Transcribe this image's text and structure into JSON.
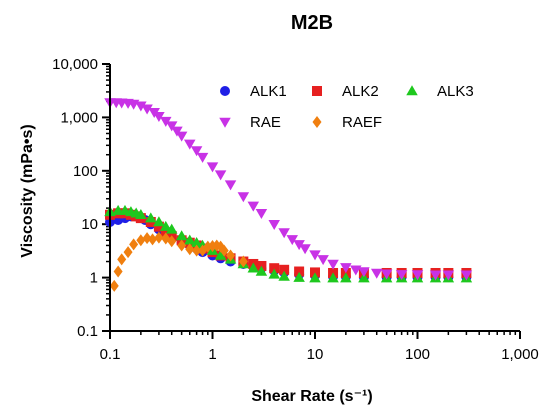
{
  "chart_data": {
    "type": "scatter",
    "title": "M2B",
    "xlabel": "Shear Rate (s⁻¹)",
    "ylabel": "Viscosity (mPa•s)",
    "x_scale": "log",
    "y_scale": "log",
    "xlim": [
      0.1,
      1000
    ],
    "ylim": [
      0.1,
      10000
    ],
    "x_ticks": [
      "0.1",
      "1",
      "10",
      "100",
      "1,000"
    ],
    "y_ticks": [
      "0.1",
      "1",
      "10",
      "100",
      "1,000",
      "10,000"
    ],
    "grid": false,
    "legend_position": "top-right",
    "series": [
      {
        "name": "ALK1",
        "marker": "circle",
        "color": "#1f1fe6",
        "points": [
          [
            0.1,
            11
          ],
          [
            0.12,
            12
          ],
          [
            0.14,
            13
          ],
          [
            0.16,
            14
          ],
          [
            0.18,
            14
          ],
          [
            0.2,
            13
          ],
          [
            0.22,
            12
          ],
          [
            0.25,
            10
          ],
          [
            0.3,
            8
          ],
          [
            0.35,
            6.5
          ],
          [
            0.4,
            5.5
          ],
          [
            0.5,
            4.5
          ],
          [
            0.6,
            4
          ],
          [
            0.7,
            3.5
          ],
          [
            0.8,
            3
          ],
          [
            1,
            2.6
          ],
          [
            1.2,
            2.3
          ],
          [
            1.5,
            2
          ],
          [
            2,
            1.8
          ],
          [
            2.5,
            1.6
          ],
          [
            3,
            1.5
          ],
          [
            4,
            1.35
          ],
          [
            5,
            1.25
          ],
          [
            7,
            1.15
          ],
          [
            10,
            1.1
          ],
          [
            15,
            1.05
          ],
          [
            20,
            1.05
          ],
          [
            30,
            1.02
          ],
          [
            50,
            1.02
          ],
          [
            70,
            1.02
          ],
          [
            100,
            1.02
          ],
          [
            150,
            1.02
          ],
          [
            200,
            1.02
          ],
          [
            300,
            1.02
          ]
        ]
      },
      {
        "name": "ALK2",
        "marker": "square",
        "color": "#e62020",
        "points": [
          [
            0.1,
            15
          ],
          [
            0.12,
            16
          ],
          [
            0.14,
            16
          ],
          [
            0.16,
            15
          ],
          [
            0.18,
            14
          ],
          [
            0.2,
            13
          ],
          [
            0.25,
            11
          ],
          [
            0.3,
            9
          ],
          [
            0.35,
            7
          ],
          [
            0.4,
            6
          ],
          [
            0.5,
            5
          ],
          [
            0.6,
            4.5
          ],
          [
            0.7,
            4
          ],
          [
            0.8,
            3.5
          ],
          [
            1,
            3
          ],
          [
            1.2,
            2.6
          ],
          [
            1.5,
            2.3
          ],
          [
            2,
            2
          ],
          [
            2.5,
            1.8
          ],
          [
            3,
            1.65
          ],
          [
            4,
            1.5
          ],
          [
            5,
            1.4
          ],
          [
            7,
            1.3
          ],
          [
            10,
            1.25
          ],
          [
            15,
            1.22
          ],
          [
            20,
            1.22
          ],
          [
            30,
            1.22
          ],
          [
            50,
            1.22
          ],
          [
            70,
            1.22
          ],
          [
            100,
            1.22
          ],
          [
            150,
            1.22
          ],
          [
            200,
            1.22
          ],
          [
            300,
            1.22
          ]
        ]
      },
      {
        "name": "ALK3",
        "marker": "triangle-up",
        "color": "#1ec81e",
        "points": [
          [
            0.1,
            17
          ],
          [
            0.12,
            18
          ],
          [
            0.14,
            18
          ],
          [
            0.16,
            17
          ],
          [
            0.18,
            16
          ],
          [
            0.2,
            15
          ],
          [
            0.25,
            13
          ],
          [
            0.3,
            11
          ],
          [
            0.35,
            9
          ],
          [
            0.4,
            8
          ],
          [
            0.5,
            6
          ],
          [
            0.6,
            5
          ],
          [
            0.7,
            4.5
          ],
          [
            0.8,
            4
          ],
          [
            1,
            3.2
          ],
          [
            1.2,
            2.6
          ],
          [
            1.5,
            2.2
          ],
          [
            2,
            1.8
          ],
          [
            2.5,
            1.5
          ],
          [
            3,
            1.3
          ],
          [
            4,
            1.15
          ],
          [
            5,
            1.05
          ],
          [
            7,
            1
          ],
          [
            10,
            0.98
          ],
          [
            15,
            0.98
          ],
          [
            20,
            0.98
          ],
          [
            30,
            0.98
          ],
          [
            50,
            0.98
          ],
          [
            70,
            0.98
          ],
          [
            100,
            0.98
          ],
          [
            150,
            0.98
          ],
          [
            200,
            0.98
          ],
          [
            300,
            0.98
          ]
        ]
      },
      {
        "name": "RAE",
        "marker": "triangle-down",
        "color": "#c832e6",
        "points": [
          [
            0.1,
            1900
          ],
          [
            0.115,
            1900
          ],
          [
            0.13,
            1880
          ],
          [
            0.15,
            1850
          ],
          [
            0.17,
            1780
          ],
          [
            0.2,
            1650
          ],
          [
            0.23,
            1450
          ],
          [
            0.27,
            1250
          ],
          [
            0.3,
            1050
          ],
          [
            0.35,
            850
          ],
          [
            0.4,
            700
          ],
          [
            0.45,
            560
          ],
          [
            0.5,
            450
          ],
          [
            0.6,
            320
          ],
          [
            0.7,
            240
          ],
          [
            0.8,
            180
          ],
          [
            1,
            120
          ],
          [
            1.2,
            85
          ],
          [
            1.5,
            55
          ],
          [
            2,
            33
          ],
          [
            2.5,
            22
          ],
          [
            3,
            16
          ],
          [
            4,
            10
          ],
          [
            5,
            7
          ],
          [
            6,
            5.2
          ],
          [
            7,
            4.2
          ],
          [
            8,
            3.5
          ],
          [
            10,
            2.7
          ],
          [
            12,
            2.2
          ],
          [
            15,
            1.8
          ],
          [
            20,
            1.55
          ],
          [
            25,
            1.4
          ],
          [
            30,
            1.3
          ],
          [
            40,
            1.22
          ],
          [
            50,
            1.18
          ],
          [
            70,
            1.15
          ],
          [
            100,
            1.14
          ],
          [
            150,
            1.13
          ],
          [
            200,
            1.13
          ],
          [
            300,
            1.13
          ]
        ]
      },
      {
        "name": "RAEF",
        "marker": "diamond",
        "color": "#f07f0f",
        "points": [
          [
            0.11,
            0.7
          ],
          [
            0.12,
            1.3
          ],
          [
            0.13,
            2.2
          ],
          [
            0.15,
            3
          ],
          [
            0.17,
            4.2
          ],
          [
            0.2,
            5
          ],
          [
            0.23,
            5.5
          ],
          [
            0.26,
            5.2
          ],
          [
            0.3,
            5.6
          ],
          [
            0.35,
            5.4
          ],
          [
            0.4,
            4.8
          ],
          [
            0.5,
            4
          ],
          [
            0.6,
            3.4
          ],
          [
            0.7,
            3.2
          ],
          [
            0.8,
            3.2
          ],
          [
            0.9,
            3.8
          ],
          [
            1,
            3.9
          ],
          [
            1.1,
            4
          ],
          [
            1.2,
            3.8
          ],
          [
            1.3,
            3.2
          ],
          [
            1.5,
            2.6
          ],
          [
            2,
            2
          ]
        ]
      }
    ]
  }
}
